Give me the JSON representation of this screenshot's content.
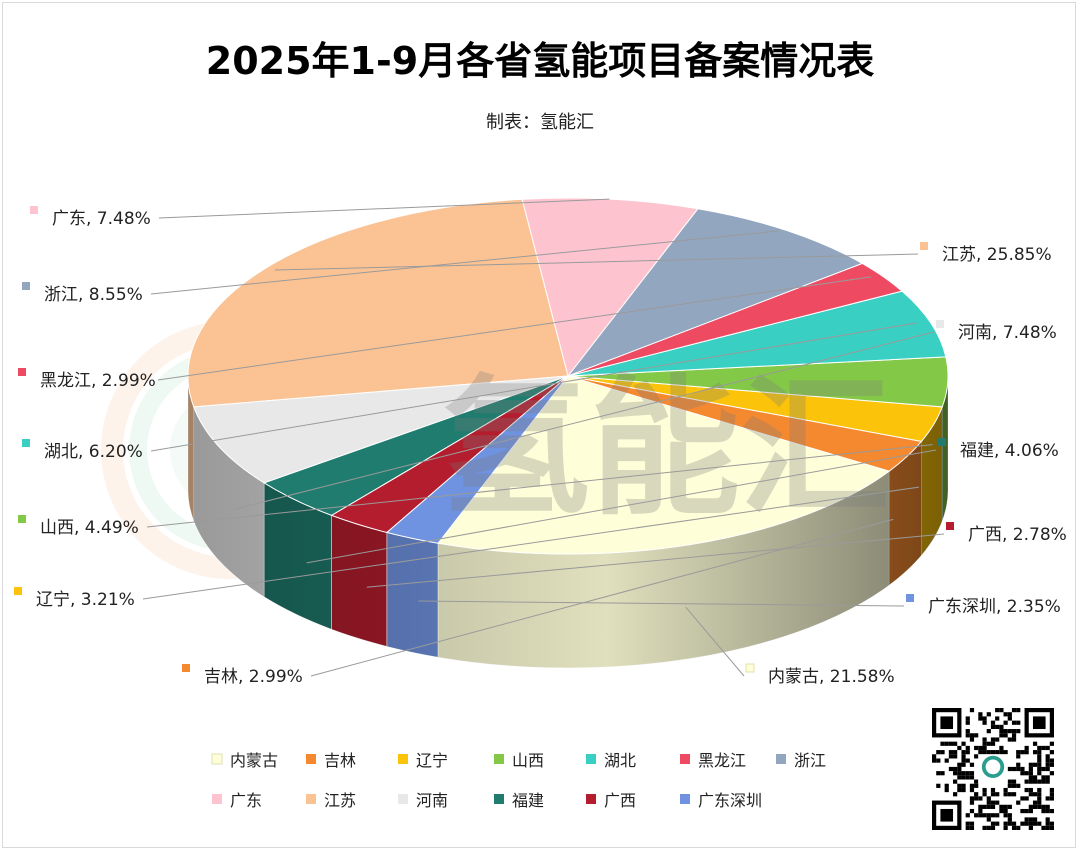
{
  "title": "2025年1-9月各省氢能项目备案情况表",
  "subtitle": "制表：氢能汇",
  "watermark": "氢能汇",
  "chart_data": {
    "type": "pie",
    "title": "2025年1-9月各省氢能项目备案情况表",
    "subtitle": "制表：氢能汇",
    "legend_position": "bottom",
    "slices": [
      {
        "name": "内蒙古",
        "value": 21.58,
        "label": "内蒙古, 21.58%",
        "color": "#FEFED8"
      },
      {
        "name": "吉林",
        "value": 2.99,
        "label": "吉林, 2.99%",
        "color": "#F5892F"
      },
      {
        "name": "辽宁",
        "value": 3.21,
        "label": "辽宁, 3.21%",
        "color": "#FBC40A"
      },
      {
        "name": "山西",
        "value": 4.49,
        "label": "山西, 4.49%",
        "color": "#84C848"
      },
      {
        "name": "湖北",
        "value": 6.2,
        "label": "湖北, 6.20%",
        "color": "#3ACFC3"
      },
      {
        "name": "黑龙江",
        "value": 2.99,
        "label": "黑龙江, 2.99%",
        "color": "#EE4B62"
      },
      {
        "name": "浙江",
        "value": 8.55,
        "label": "浙江, 8.55%",
        "color": "#93A6C0"
      },
      {
        "name": "广东",
        "value": 7.48,
        "label": "广东, 7.48%",
        "color": "#FDC4D0"
      },
      {
        "name": "江苏",
        "value": 25.85,
        "label": "江苏, 25.85%",
        "color": "#FBC394"
      },
      {
        "name": "河南",
        "value": 7.48,
        "label": "河南, 7.48%",
        "color": "#E8E8E8"
      },
      {
        "name": "福建",
        "value": 4.06,
        "label": "福建, 4.06%",
        "color": "#1F7C6E"
      },
      {
        "name": "广西",
        "value": 2.78,
        "label": "广西, 2.78%",
        "color": "#B31D2E"
      },
      {
        "name": "广东深圳",
        "value": 2.35,
        "label": "广东深圳, 2.35%",
        "color": "#6F93E0"
      }
    ]
  }
}
